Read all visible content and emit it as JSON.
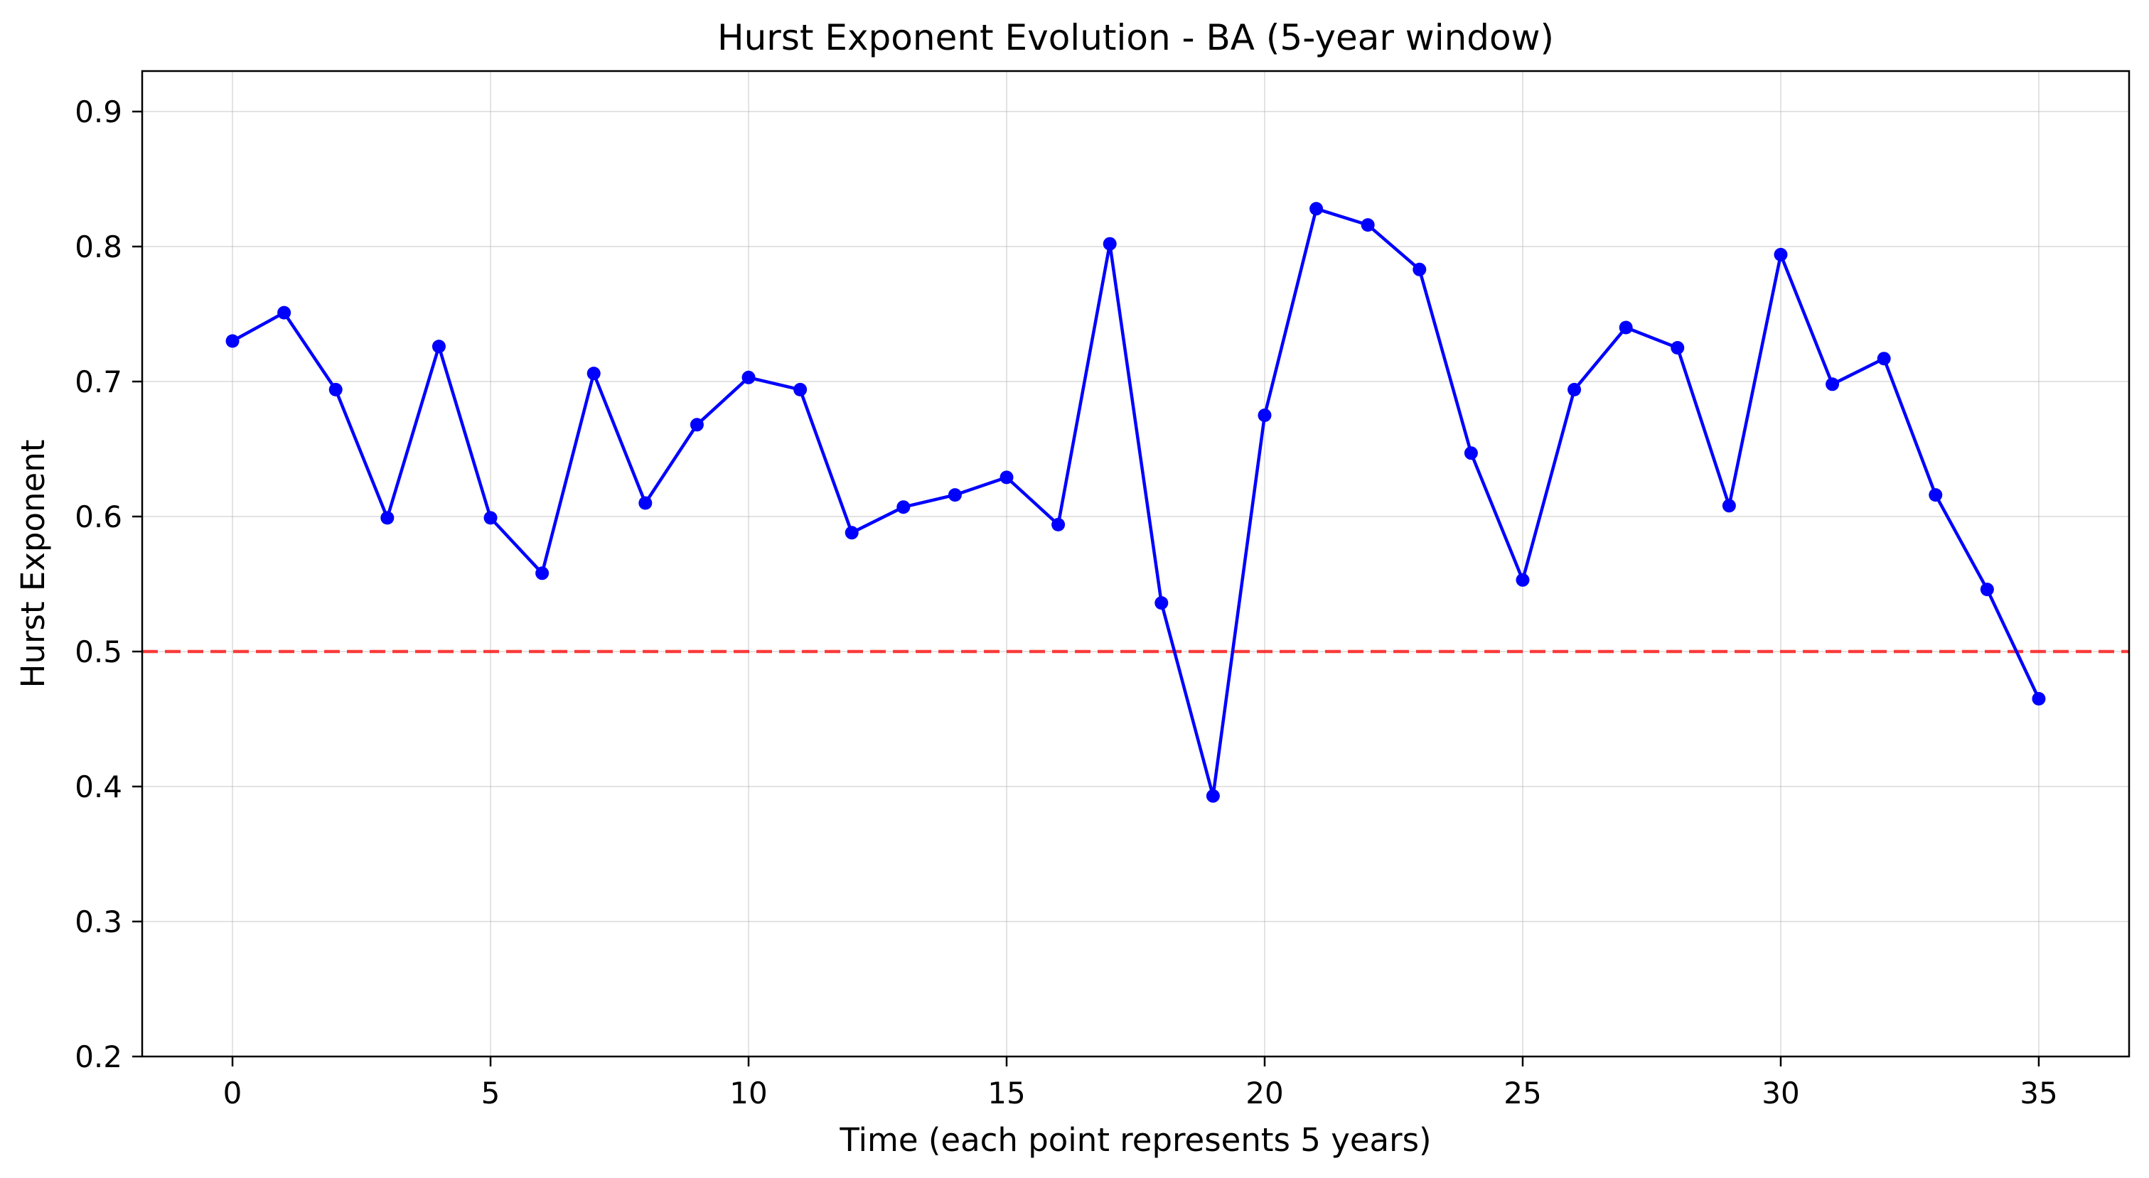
{
  "chart_data": {
    "type": "line",
    "title": "Hurst Exponent Evolution - BA (5-year window)",
    "xlabel": "Time (each point represents 5 years)",
    "ylabel": "Hurst Exponent",
    "xlim": [
      -1.75,
      36.75
    ],
    "ylim": [
      0.2,
      0.93
    ],
    "xticks": [
      0,
      5,
      10,
      15,
      20,
      25,
      30,
      35
    ],
    "yticks": [
      0.2,
      0.3,
      0.4,
      0.5,
      0.6,
      0.7,
      0.8,
      0.9
    ],
    "grid": true,
    "reference_line": {
      "y": 0.5,
      "style": "dashed",
      "color": "#ff0000"
    },
    "series": [
      {
        "color": "#0000ff",
        "marker": "circle",
        "x": [
          0,
          1,
          2,
          3,
          4,
          5,
          6,
          7,
          8,
          9,
          10,
          11,
          12,
          13,
          14,
          15,
          16,
          17,
          18,
          19,
          20,
          21,
          22,
          23,
          24,
          25,
          26,
          27,
          28,
          29,
          30,
          31,
          32,
          33,
          34,
          35
        ],
        "values": [
          0.73,
          0.751,
          0.694,
          0.599,
          0.726,
          0.599,
          0.558,
          0.706,
          0.61,
          0.668,
          0.703,
          0.694,
          0.588,
          0.607,
          0.616,
          0.629,
          0.594,
          0.802,
          0.536,
          0.393,
          0.675,
          0.828,
          0.816,
          0.783,
          0.647,
          0.553,
          0.694,
          0.74,
          0.725,
          0.608,
          0.794,
          0.698,
          0.717,
          0.616,
          0.546,
          0.465
        ]
      }
    ]
  }
}
